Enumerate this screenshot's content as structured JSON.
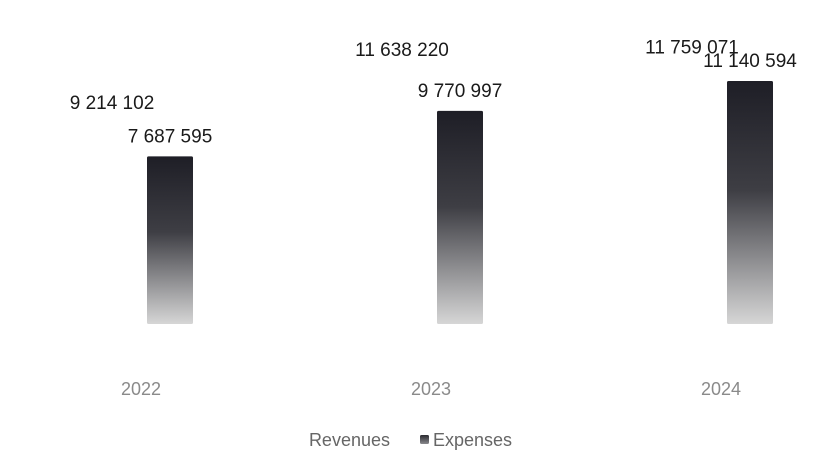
{
  "chart_data": {
    "type": "bar",
    "categories": [
      "2022",
      "2023",
      "2024"
    ],
    "series": [
      {
        "name": "Revenues",
        "values": [
          9214102,
          11638220,
          11759071
        ],
        "labels": [
          "9 214 102",
          "11 638 220",
          "11 759 071"
        ],
        "color": "#ffffff"
      },
      {
        "name": "Expenses",
        "values": [
          7687595,
          9770997,
          11140594
        ],
        "labels": [
          "7 687 595",
          "9 770 997",
          "11 140 594"
        ],
        "color_top": "#1e1e26",
        "color_bottom": "#d6d6d6"
      }
    ],
    "title": "",
    "xlabel": "",
    "ylabel": "",
    "ylim": [
      0,
      11759071
    ],
    "grid": false,
    "legend_position": "bottom-center"
  }
}
